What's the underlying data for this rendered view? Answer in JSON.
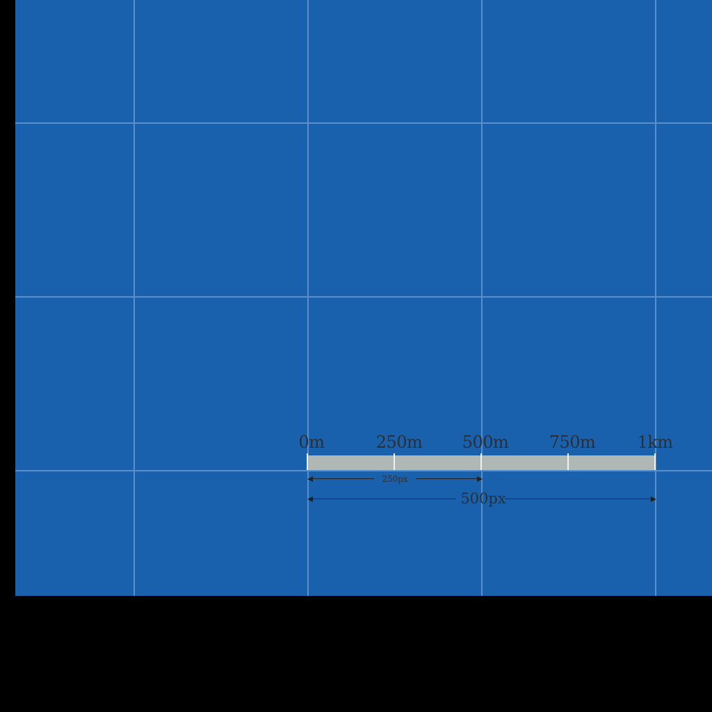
{
  "map": {
    "background_color": "#1a61ad",
    "grid_color": "#5b8fc9",
    "frame_color": "#000000"
  },
  "scale_bar": {
    "labels": [
      "0m",
      "250m",
      "500m",
      "750m",
      "1km"
    ],
    "bar_color": "#b0b8b6",
    "tick_color": "#f2f2f2"
  },
  "dimensions": {
    "small_label": "250px",
    "large_label": "500px"
  }
}
